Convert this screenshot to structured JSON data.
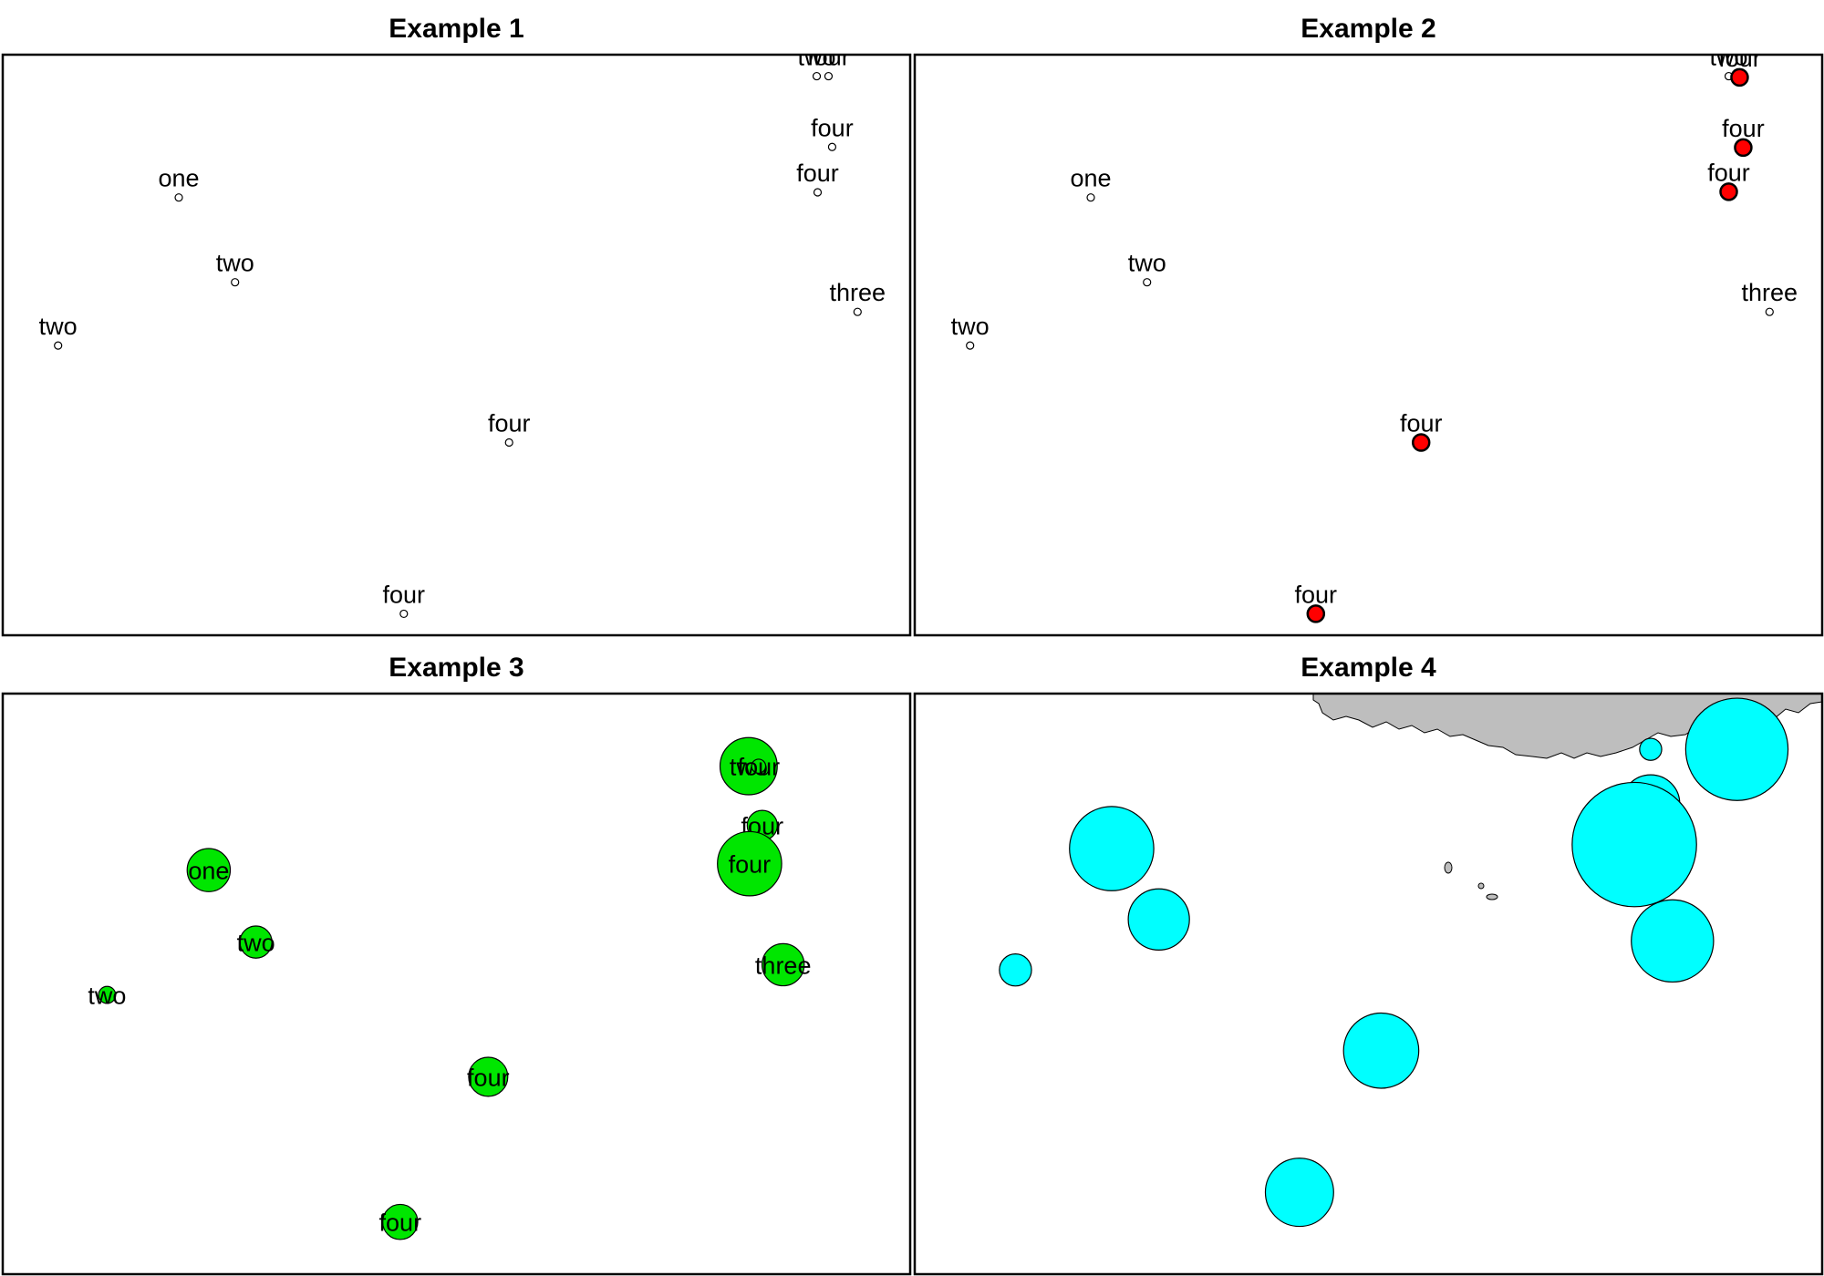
{
  "colors": {
    "frame": "#000000",
    "point_fill_plain": "#ffffff",
    "point_fill_highlight": "#ff0000",
    "bubble_green": "#00e600",
    "bubble_cyan": "#00ffff",
    "land": "#bebebe"
  },
  "chart_data": [
    {
      "type": "scatter",
      "title": "Example 1",
      "xlim": [
        0,
        100
      ],
      "ylim": [
        0,
        100
      ],
      "grid": false,
      "points": [
        {
          "x": 19.4,
          "y": 75.4,
          "label": "one",
          "size": 0,
          "highlight": false
        },
        {
          "x": 25.6,
          "y": 60.8,
          "label": "two",
          "size": 0,
          "highlight": false
        },
        {
          "x": 6.1,
          "y": 49.9,
          "label": "two",
          "size": 0,
          "highlight": false
        },
        {
          "x": 89.7,
          "y": 96.3,
          "label": "two",
          "size": 0,
          "highlight": false
        },
        {
          "x": 91.0,
          "y": 96.3,
          "label": "four",
          "size": 0,
          "highlight": false
        },
        {
          "x": 91.4,
          "y": 84.1,
          "label": "four",
          "size": 0,
          "highlight": false
        },
        {
          "x": 89.8,
          "y": 76.3,
          "label": "four",
          "size": 0,
          "highlight": false
        },
        {
          "x": 94.2,
          "y": 55.7,
          "label": "three",
          "size": 0,
          "highlight": false
        },
        {
          "x": 55.8,
          "y": 33.2,
          "label": "four",
          "size": 0,
          "highlight": false
        },
        {
          "x": 44.2,
          "y": 3.7,
          "label": "four",
          "size": 0,
          "highlight": false
        }
      ]
    },
    {
      "type": "scatter",
      "title": "Example 2",
      "xlim": [
        0,
        100
      ],
      "ylim": [
        0,
        100
      ],
      "grid": false,
      "points": [
        {
          "x": 19.4,
          "y": 75.4,
          "label": "one",
          "size": 0,
          "highlight": false
        },
        {
          "x": 25.6,
          "y": 60.8,
          "label": "two",
          "size": 0,
          "highlight": false
        },
        {
          "x": 6.1,
          "y": 49.9,
          "label": "two",
          "size": 0,
          "highlight": false
        },
        {
          "x": 89.7,
          "y": 96.3,
          "label": "two",
          "size": 0,
          "highlight": false
        },
        {
          "x": 90.9,
          "y": 96.1,
          "label": "four",
          "size": 0,
          "highlight": true
        },
        {
          "x": 91.3,
          "y": 84.0,
          "label": "four",
          "size": 0,
          "highlight": true
        },
        {
          "x": 89.7,
          "y": 76.4,
          "label": "four",
          "size": 0,
          "highlight": true
        },
        {
          "x": 94.2,
          "y": 55.7,
          "label": "three",
          "size": 0,
          "highlight": false
        },
        {
          "x": 55.8,
          "y": 33.2,
          "label": "four",
          "size": 0,
          "highlight": true
        },
        {
          "x": 44.2,
          "y": 3.7,
          "label": "four",
          "size": 0,
          "highlight": true
        }
      ]
    },
    {
      "type": "scatter",
      "title": "Example 3",
      "xlim": [
        0,
        100
      ],
      "ylim": [
        0,
        100
      ],
      "grid": false,
      "points": [
        {
          "x": 22.7,
          "y": 69.6,
          "label": "one",
          "size": 43,
          "highlight": false
        },
        {
          "x": 27.9,
          "y": 57.2,
          "label": "two",
          "size": 32,
          "highlight": false
        },
        {
          "x": 11.5,
          "y": 48.1,
          "label": "two",
          "size": 17,
          "highlight": false
        },
        {
          "x": 82.2,
          "y": 87.5,
          "label": "two",
          "size": 57,
          "highlight": false
        },
        {
          "x": 83.3,
          "y": 87.5,
          "label": "four",
          "size": 14,
          "highlight": false
        },
        {
          "x": 83.7,
          "y": 77.3,
          "label": "four",
          "size": 30,
          "highlight": false
        },
        {
          "x": 82.3,
          "y": 70.7,
          "label": "four",
          "size": 64,
          "highlight": false
        },
        {
          "x": 86.0,
          "y": 53.3,
          "label": "three",
          "size": 42,
          "highlight": false
        },
        {
          "x": 53.5,
          "y": 34.0,
          "label": "four",
          "size": 39,
          "highlight": false
        },
        {
          "x": 43.8,
          "y": 9.0,
          "label": "four",
          "size": 35,
          "highlight": false
        }
      ]
    },
    {
      "type": "scatter",
      "title": "Example 4",
      "xlim": [
        0,
        100
      ],
      "ylim": [
        0,
        100
      ],
      "grid": false,
      "points": [
        {
          "x": 21.7,
          "y": 73.3,
          "label": "",
          "size": 84,
          "highlight": false
        },
        {
          "x": 26.9,
          "y": 61.1,
          "label": "",
          "size": 61,
          "highlight": false
        },
        {
          "x": 11.1,
          "y": 52.4,
          "label": "",
          "size": 32,
          "highlight": false
        },
        {
          "x": 90.6,
          "y": 90.4,
          "label": "",
          "size": 102,
          "highlight": false
        },
        {
          "x": 81.1,
          "y": 90.4,
          "label": "",
          "size": 22,
          "highlight": false
        },
        {
          "x": 81.1,
          "y": 81.0,
          "label": "",
          "size": 58,
          "highlight": false
        },
        {
          "x": 79.3,
          "y": 74.0,
          "label": "",
          "size": 124,
          "highlight": false
        },
        {
          "x": 83.5,
          "y": 57.4,
          "label": "",
          "size": 82,
          "highlight": false
        },
        {
          "x": 51.4,
          "y": 38.5,
          "label": "",
          "size": 75,
          "highlight": false
        },
        {
          "x": 42.4,
          "y": 14.1,
          "label": "",
          "size": 68,
          "highlight": false
        }
      ]
    }
  ]
}
